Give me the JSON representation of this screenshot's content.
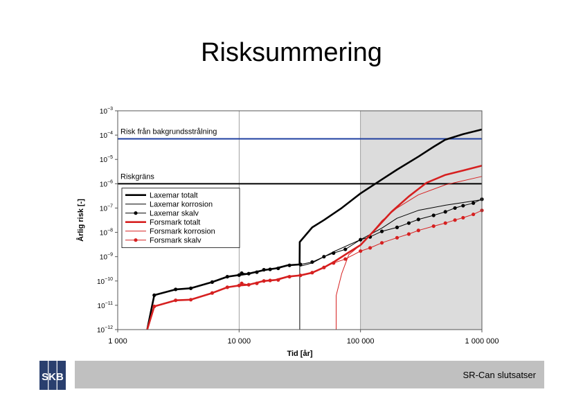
{
  "slide": {
    "title": "Risksummering",
    "footer": "SR-Can slutsatser",
    "logo_text": "SKB"
  },
  "chart_data": {
    "type": "line",
    "xscale": "log",
    "yscale": "log",
    "xlim": [
      1000,
      1000000
    ],
    "ylim": [
      1e-12,
      0.001
    ],
    "xlabel": "Tid [år]",
    "ylabel": "Årlig risk [-]",
    "xticks": [
      {
        "value": 1000,
        "label": "1 000"
      },
      {
        "value": 10000,
        "label": "10 000"
      },
      {
        "value": 100000,
        "label": "100 000"
      },
      {
        "value": 1000000,
        "label": "1 000 000"
      }
    ],
    "yticks": [
      {
        "value": 1e-12,
        "base": "10",
        "exp": "−12"
      },
      {
        "value": 1e-11,
        "base": "10",
        "exp": "−11"
      },
      {
        "value": 1e-10,
        "base": "10",
        "exp": "−10"
      },
      {
        "value": 1e-09,
        "base": "10",
        "exp": "−9"
      },
      {
        "value": 1e-08,
        "base": "10",
        "exp": "−8"
      },
      {
        "value": 1e-07,
        "base": "10",
        "exp": "−7"
      },
      {
        "value": 1e-06,
        "base": "10",
        "exp": "−6"
      },
      {
        "value": 1e-05,
        "base": "10",
        "exp": "−5"
      },
      {
        "value": 0.0001,
        "base": "10",
        "exp": "−4"
      },
      {
        "value": 0.001,
        "base": "10",
        "exp": "−3"
      }
    ],
    "grid_x": [
      10000,
      100000
    ],
    "shaded_region": {
      "x": [
        100000,
        1000000
      ],
      "color": "#dcdcdc"
    },
    "reference_lines": [
      {
        "label": "Risk från bakgrundsstrålning",
        "y": 7e-05,
        "color": "#1f3fa0"
      },
      {
        "label": "Riskgräns",
        "y": 1e-06,
        "color": "#000000"
      }
    ],
    "legend_position": "left-middle",
    "series": [
      {
        "name": "Laxemar totalt",
        "color": "#000000",
        "width": 2.6,
        "markers": false,
        "points": [
          [
            1750,
            1e-12
          ],
          [
            2000,
            2.6e-11
          ],
          [
            3000,
            4.5e-11
          ],
          [
            4000,
            5e-11
          ],
          [
            6000,
            9e-11
          ],
          [
            8000,
            1.5e-10
          ],
          [
            10000,
            1.75e-10
          ],
          [
            12000,
            2e-10
          ],
          [
            16000,
            2.8e-10
          ],
          [
            20000,
            3.3e-10
          ],
          [
            25000,
            4.4e-10
          ],
          [
            31500,
            4.8e-10
          ],
          [
            31600,
            4e-09
          ],
          [
            40000,
            1.6e-08
          ],
          [
            50000,
            3.2e-08
          ],
          [
            70000,
            1e-07
          ],
          [
            100000,
            4e-07
          ],
          [
            150000,
            1.5e-06
          ],
          [
            200000,
            3.8e-06
          ],
          [
            300000,
            1.3e-05
          ],
          [
            400000,
            3.3e-05
          ],
          [
            500000,
            6.5e-05
          ],
          [
            700000,
            0.00011
          ],
          [
            1000000,
            0.00017
          ]
        ]
      },
      {
        "name": "Laxemar korrosion",
        "color": "#000000",
        "width": 1,
        "markers": false,
        "points": [
          [
            31600,
            1e-12
          ],
          [
            31600,
            4e-10
          ],
          [
            40000,
            5.5e-10
          ],
          [
            60000,
            1.6e-09
          ],
          [
            100000,
            5e-09
          ],
          [
            150000,
            1.5e-08
          ],
          [
            200000,
            3.8e-08
          ],
          [
            300000,
            8e-08
          ],
          [
            500000,
            1.3e-07
          ],
          [
            1000000,
            2.2e-07
          ]
        ]
      },
      {
        "name": "Laxemar skalv",
        "color": "#000000",
        "width": 1,
        "markers": true,
        "points": [
          [
            2000,
            2.6e-11
          ],
          [
            3000,
            4.5e-11
          ],
          [
            4000,
            5e-11
          ],
          [
            6000,
            9e-11
          ],
          [
            8000,
            1.5e-10
          ],
          [
            10000,
            1.75e-10
          ],
          [
            10500,
            2.1e-10
          ],
          [
            12000,
            2e-10
          ],
          [
            14000,
            2.3e-10
          ],
          [
            16000,
            2.9e-10
          ],
          [
            18000,
            3e-10
          ],
          [
            21000,
            3.3e-10
          ],
          [
            26000,
            4.4e-10
          ],
          [
            32000,
            4.8e-10
          ],
          [
            40000,
            6e-10
          ],
          [
            50000,
            1e-09
          ],
          [
            60000,
            1.4e-09
          ],
          [
            75000,
            2e-09
          ],
          [
            100000,
            5e-09
          ],
          [
            120000,
            6.5e-09
          ],
          [
            150000,
            1.1e-08
          ],
          [
            200000,
            1.6e-08
          ],
          [
            250000,
            2.4e-08
          ],
          [
            300000,
            3.4e-08
          ],
          [
            400000,
            5e-08
          ],
          [
            500000,
            7e-08
          ],
          [
            600000,
            1e-07
          ],
          [
            700000,
            1.25e-07
          ],
          [
            850000,
            1.6e-07
          ],
          [
            1000000,
            2.3e-07
          ]
        ]
      },
      {
        "name": "Forsmark totalt",
        "color": "#d62020",
        "width": 2.6,
        "markers": false,
        "points": [
          [
            1750,
            1e-12
          ],
          [
            2000,
            9e-12
          ],
          [
            3000,
            1.6e-11
          ],
          [
            4000,
            1.7e-11
          ],
          [
            6000,
            3.2e-11
          ],
          [
            8000,
            5.5e-11
          ],
          [
            10000,
            6.5e-11
          ],
          [
            12000,
            7e-11
          ],
          [
            16000,
            1e-10
          ],
          [
            20000,
            1.1e-10
          ],
          [
            25000,
            1.5e-10
          ],
          [
            32000,
            1.7e-10
          ],
          [
            40000,
            2.2e-10
          ],
          [
            50000,
            3.6e-10
          ],
          [
            60000,
            6e-10
          ],
          [
            80000,
            1.5e-09
          ],
          [
            100000,
            3e-09
          ],
          [
            130000,
            1.2e-08
          ],
          [
            180000,
            7e-08
          ],
          [
            250000,
            3e-07
          ],
          [
            350000,
            1.1e-06
          ],
          [
            500000,
            2.3e-06
          ],
          [
            700000,
            3.5e-06
          ],
          [
            1000000,
            5.5e-06
          ]
        ]
      },
      {
        "name": "Forsmark korrosion",
        "color": "#d62020",
        "width": 1,
        "markers": false,
        "points": [
          [
            63000,
            1e-12
          ],
          [
            63000,
            2.5e-11
          ],
          [
            70000,
            2e-10
          ],
          [
            80000,
            1.2e-09
          ],
          [
            100000,
            3e-09
          ],
          [
            120000,
            8e-09
          ],
          [
            150000,
            3e-08
          ],
          [
            200000,
            1e-07
          ],
          [
            300000,
            3.5e-07
          ],
          [
            500000,
            9e-07
          ],
          [
            1000000,
            2e-06
          ]
        ]
      },
      {
        "name": "Forsmark skalv",
        "color": "#d62020",
        "width": 1,
        "markers": true,
        "points": [
          [
            2000,
            9e-12
          ],
          [
            3000,
            1.6e-11
          ],
          [
            4000,
            1.7e-11
          ],
          [
            6000,
            3.2e-11
          ],
          [
            8000,
            5.5e-11
          ],
          [
            10000,
            6.5e-11
          ],
          [
            10500,
            8e-11
          ],
          [
            12000,
            7e-11
          ],
          [
            14000,
            8e-11
          ],
          [
            16000,
            1e-10
          ],
          [
            18000,
            1.05e-10
          ],
          [
            21000,
            1.1e-10
          ],
          [
            26000,
            1.5e-10
          ],
          [
            32000,
            1.7e-10
          ],
          [
            40000,
            2.2e-10
          ],
          [
            50000,
            3.6e-10
          ],
          [
            60000,
            5.5e-10
          ],
          [
            75000,
            8e-10
          ],
          [
            100000,
            1.7e-09
          ],
          [
            120000,
            2.3e-09
          ],
          [
            150000,
            3.7e-09
          ],
          [
            200000,
            6e-09
          ],
          [
            250000,
            8.5e-09
          ],
          [
            300000,
            1.2e-08
          ],
          [
            400000,
            1.8e-08
          ],
          [
            500000,
            2.4e-08
          ],
          [
            600000,
            3.2e-08
          ],
          [
            700000,
            4e-08
          ],
          [
            850000,
            5.5e-08
          ],
          [
            1000000,
            8e-08
          ]
        ]
      }
    ]
  }
}
